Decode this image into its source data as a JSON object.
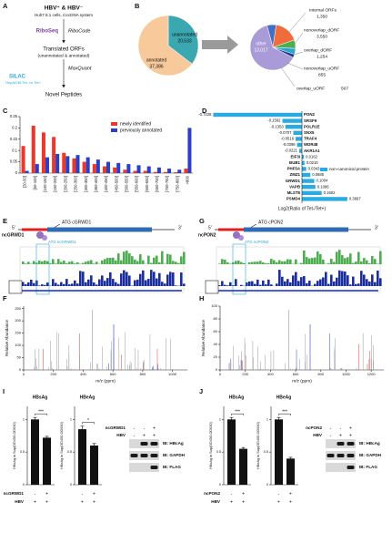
{
  "panel_a": {
    "letter": "A",
    "hbv": "HBV⁺ & HBV⁻",
    "cells": "Huh7.5.1 cells, rcccDNA system",
    "riboseq": "RiboSeq",
    "ribocode": "RiboCode",
    "translated": "Translated ORFs",
    "translated_sub": "(unannotated & annotated)",
    "maxquant": "MaxQuant",
    "silac": "SILAC",
    "silac_sub": "HepAD38 Tet- vs Tet+",
    "novel": "Novel Peptides"
  },
  "panel_b": {
    "letter": "B",
    "pie1": {
      "type": "pie",
      "labels": [
        "unannotated",
        "annotated"
      ],
      "values": [
        20533,
        37386
      ],
      "value_labels": [
        "20,533",
        "37,386"
      ],
      "colors": [
        "#3ba7b0",
        "#f7c99b"
      ]
    },
    "pie2": {
      "type": "pie",
      "labels": [
        "Internal ORFs",
        "nonoverlap_dORF",
        "overlap_dORF",
        "nonoverlap_uORF",
        "overlap_uORF",
        "other"
      ],
      "values": [
        1350,
        3550,
        1254,
        855,
        507,
        13017
      ],
      "value_labels": [
        "1,350",
        "3,550",
        "1,254",
        "855",
        "507",
        "13,017"
      ],
      "colors": [
        "#3f6fc6",
        "#f26b3a",
        "#4cae4f",
        "#2aa3d8",
        "#1f3c88",
        "#a99bd8"
      ]
    }
  },
  "panel_c": {
    "letter": "C",
    "chart_data": {
      "type": "bar",
      "categories": [
        "[20-50]",
        "[50-100]",
        "[100-150]",
        "[150-200]",
        "[200-250]",
        "[250-300]",
        "[300-350]",
        "[350-400]",
        "[400-450]",
        "[450-500]",
        "[500-550]",
        "[550-600]",
        "[600-650]",
        "[650-700]",
        "[700-750]",
        "[750-800]",
        ">800"
      ],
      "series": [
        {
          "name": "newly identified",
          "color": "#e8392a",
          "values": [
            0.12,
            0.21,
            0.18,
            0.16,
            0.09,
            0.065,
            0.05,
            0.04,
            0.03,
            0.025,
            0.015,
            0.01,
            0.01,
            0.005,
            0.005,
            0.004,
            0.02
          ]
        },
        {
          "name": "previously annotated",
          "color": "#2b3fc8",
          "values": [
            0.01,
            0.04,
            0.07,
            0.085,
            0.075,
            0.08,
            0.07,
            0.06,
            0.05,
            0.045,
            0.04,
            0.035,
            0.03,
            0.025,
            0.02,
            0.015,
            0.2
          ]
        }
      ],
      "ylim": [
        0,
        0.25
      ],
      "yticks": [
        0,
        0.05,
        0.1,
        0.15,
        0.2,
        0.25
      ]
    }
  },
  "panel_d": {
    "letter": "D",
    "chart_data": {
      "type": "hbar",
      "xlabel": "Log2(Ratio of Tet-/Tet+)",
      "legend": "non-canonical protein",
      "color": "#29abe2",
      "categories": [
        "PON2",
        "SRSF9",
        "POLR1E",
        "SNX5",
        "TRAF4",
        "WDR48",
        "AKR1A1",
        "EIF3I",
        "BUB1",
        "PHF5A",
        "ZMZ1",
        "GRWD1",
        "VAPB",
        "MLST8",
        "PSMD4"
      ],
      "values": [
        -0.7228,
        -0.1592,
        -0.1353,
        -0.0707,
        -0.0516,
        -0.0396,
        -0.0221,
        0.0162,
        0.021,
        0.0343,
        0.0685,
        0.1004,
        0.1096,
        0.1602,
        0.3697
      ],
      "value_labels": [
        "-0.7228",
        "-0.1592",
        "-0.1353",
        "-0.0707",
        "-0.0516",
        "-0.0396",
        "-0.0221",
        "0.0162",
        "0.0210",
        "0.0343",
        "0.0685",
        "0.1004",
        "0.1096",
        "0.1602",
        "0.3697"
      ]
    }
  },
  "panel_e": {
    "letter": "E",
    "five": "5'",
    "three": "3'",
    "atg_canonical": "ATG cGRWD1",
    "nc_name": "ncGRWD1",
    "atg_nc": "ATG ncGRWD1"
  },
  "panel_g": {
    "letter": "G",
    "five": "5'",
    "three": "3'",
    "atg_canonical": "ATG cPON2",
    "nc_name": "ncPON2",
    "atg_nc": "ATG ncPON2"
  },
  "panel_f": {
    "letter": "F",
    "ylabel": "Relative Abundance",
    "xlabel": "m/z (ppm)",
    "xlim": [
      0,
      1100
    ],
    "xticks": [
      0,
      200,
      400,
      600,
      800,
      1000
    ],
    "ylim": [
      0,
      260
    ],
    "yticks": [
      0,
      50,
      100,
      150,
      200,
      250
    ]
  },
  "panel_h": {
    "letter": "H",
    "ylabel": "Relative Abundance",
    "xlabel": "m/z (ppm)",
    "xlim": [
      0,
      1300
    ],
    "xticks": [
      0,
      200,
      400,
      600,
      800,
      1000,
      1200
    ],
    "ylim": [
      0,
      100
    ],
    "yticks": [
      0,
      20,
      40,
      60,
      80,
      100
    ]
  },
  "panel_i": {
    "letter": "I",
    "charts": [
      {
        "title": "HBsAg",
        "ylabel": "HBsAg in Sup(OD450-OD630)",
        "values": [
          1.0,
          0.72
        ],
        "errors": [
          0.03,
          0.02
        ],
        "ylim": [
          0,
          1.2
        ],
        "yticks": [
          0,
          0.5,
          1
        ],
        "significance": "***"
      },
      {
        "title": "HBeAg",
        "ylabel": "HBeAg in Sup(OD450-OD630)",
        "values": [
          0.85,
          0.6
        ],
        "errors": [
          0.05,
          0.03
        ],
        "ylim": [
          0,
          1.2
        ],
        "yticks": [
          0,
          0.5,
          1
        ],
        "significance": "*"
      }
    ],
    "conditions": [
      {
        "name": "ncGRWD1",
        "signs": [
          "-",
          "+"
        ]
      },
      {
        "name": "HBV",
        "signs": [
          "+",
          "+"
        ]
      }
    ],
    "blot": {
      "conditions": [
        {
          "name": "ncGRWD1",
          "signs": [
            "-",
            "-",
            "+"
          ]
        },
        {
          "name": "HBV",
          "signs": [
            "-",
            "+",
            "+"
          ]
        }
      ],
      "bands": [
        "IB: HBcAg",
        "IB: GAPDH",
        "IB: FLAG"
      ]
    }
  },
  "panel_j": {
    "letter": "J",
    "charts": [
      {
        "title": "HBsAg",
        "ylabel": "HBsAg in Sup(OD450-OD630)",
        "values": [
          1.0,
          0.55
        ],
        "errors": [
          0.03,
          0.02
        ],
        "ylim": [
          0,
          1.2
        ],
        "yticks": [
          0,
          0.5,
          1
        ],
        "significance": "***"
      },
      {
        "title": "HBeAg",
        "ylabel": "HBeAg in Sup(OD450-OD630)",
        "values": [
          1.0,
          0.4
        ],
        "errors": [
          0.03,
          0.02
        ],
        "ylim": [
          0,
          1.2
        ],
        "yticks": [
          0,
          0.5,
          1
        ],
        "significance": "***"
      }
    ],
    "conditions": [
      {
        "name": "ncPON2",
        "signs": [
          "-",
          "+"
        ]
      },
      {
        "name": "HBV",
        "signs": [
          "+",
          "+"
        ]
      }
    ],
    "blot": {
      "conditions": [
        {
          "name": "ncPON2",
          "signs": [
            "-",
            "-",
            "+"
          ]
        },
        {
          "name": "HBV",
          "signs": [
            "-",
            "+",
            "+"
          ]
        }
      ],
      "bands": [
        "IB: HBcAg",
        "IB: GAPDH",
        "IB: FLAG"
      ]
    }
  }
}
